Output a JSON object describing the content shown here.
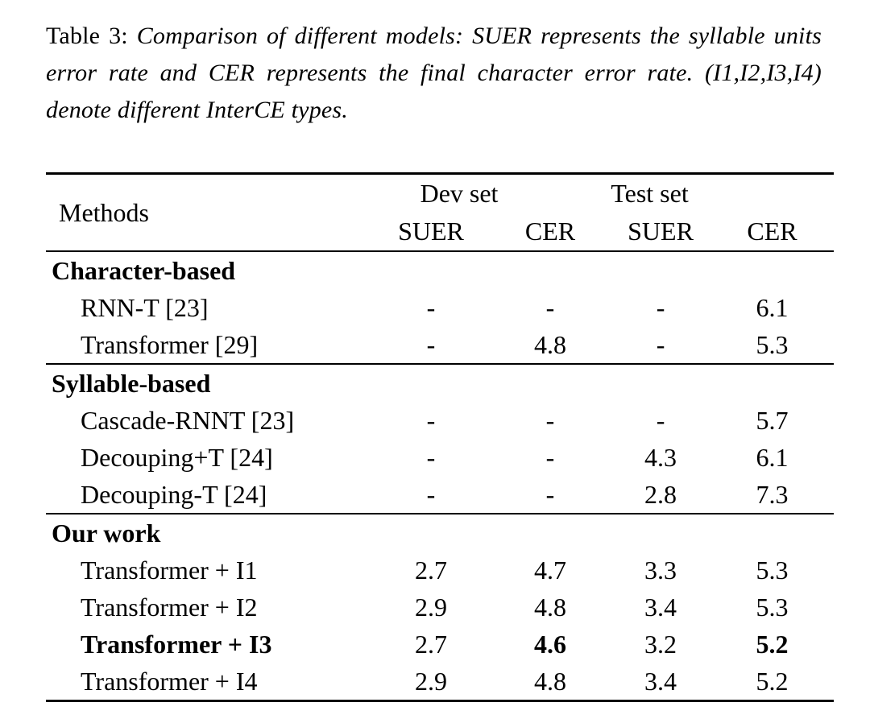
{
  "caption": {
    "label": "Table 3:",
    "text": "Comparison of different models: SUER represents the syllable units error rate and CER represents the final character error rate. (I1,I2,I3,I4) denote different InterCE types."
  },
  "table": {
    "methods_header": "Methods",
    "groups": [
      {
        "label": "Dev set",
        "subcolumns": [
          "SUER",
          "CER"
        ]
      },
      {
        "label": "Test set",
        "subcolumns": [
          "SUER",
          "CER"
        ]
      }
    ],
    "sections": [
      {
        "title": "Character-based",
        "rows": [
          {
            "method": "RNN-T [23]",
            "dev_suer": "-",
            "dev_cer": "-",
            "test_suer": "-",
            "test_cer": "6.1"
          },
          {
            "method": "Transformer [29]",
            "dev_suer": "-",
            "dev_cer": "4.8",
            "test_suer": "-",
            "test_cer": "5.3"
          }
        ]
      },
      {
        "title": "Syllable-based",
        "rows": [
          {
            "method": "Cascade-RNNT [23]",
            "dev_suer": "-",
            "dev_cer": "-",
            "test_suer": "-",
            "test_cer": "5.7"
          },
          {
            "method": "Decouping+T [24]",
            "dev_suer": "-",
            "dev_cer": "-",
            "test_suer": "4.3",
            "test_cer": "6.1"
          },
          {
            "method": "Decouping-T [24]",
            "dev_suer": "-",
            "dev_cer": "-",
            "test_suer": "2.8",
            "test_cer": "7.3"
          }
        ]
      },
      {
        "title": "Our work",
        "rows": [
          {
            "method": "Transformer + I1",
            "dev_suer": "2.7",
            "dev_cer": "4.7",
            "test_suer": "3.3",
            "test_cer": "5.3"
          },
          {
            "method": "Transformer + I2",
            "dev_suer": "2.9",
            "dev_cer": "4.8",
            "test_suer": "3.4",
            "test_cer": "5.3"
          },
          {
            "method": "Transformer + I3",
            "dev_suer": "2.7",
            "dev_cer": "4.6",
            "test_suer": "3.2",
            "test_cer": "5.2",
            "bold_fields": [
              "method",
              "dev_cer",
              "test_cer"
            ]
          },
          {
            "method": "Transformer + I4",
            "dev_suer": "2.9",
            "dev_cer": "4.8",
            "test_suer": "3.4",
            "test_cer": "5.2"
          }
        ]
      }
    ]
  },
  "colors": {
    "background": "#ffffff",
    "text": "#000000",
    "rule": "#000000"
  }
}
